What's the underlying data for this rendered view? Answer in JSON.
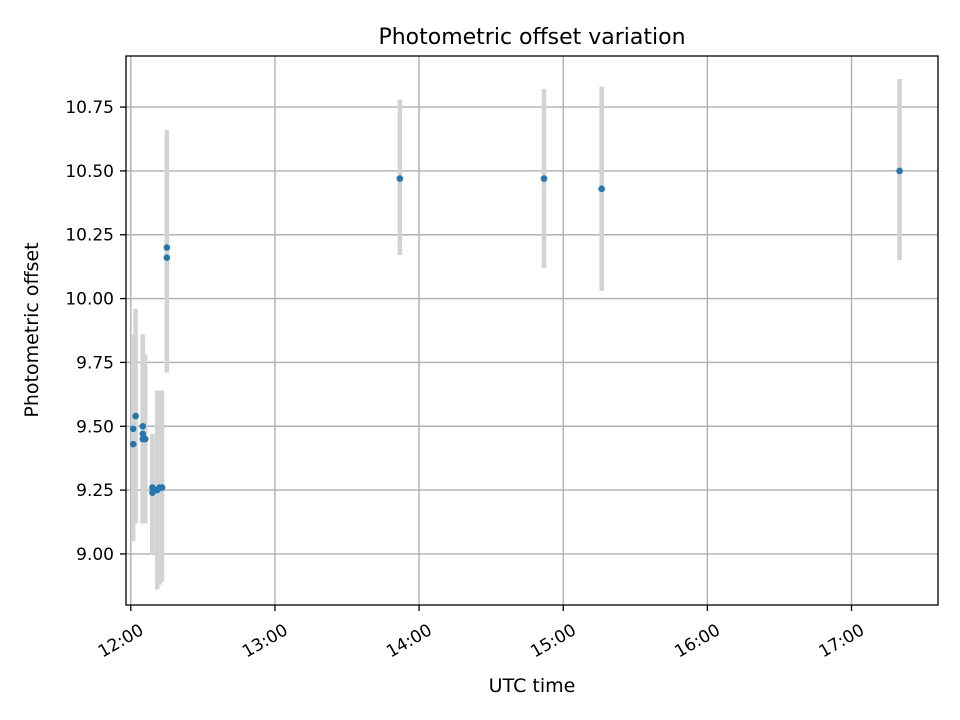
{
  "chart_data": {
    "type": "scatter",
    "title": "Photometric offset variation",
    "xlabel": "UTC time",
    "ylabel": "Photometric offset",
    "x_axis_kind": "time",
    "xlim": [
      "11:58",
      "17:36"
    ],
    "ylim": [
      8.8,
      10.95
    ],
    "x_ticks": [
      "12:00",
      "13:00",
      "14:00",
      "15:00",
      "16:00",
      "17:00"
    ],
    "y_ticks": [
      "9.00",
      "9.25",
      "9.50",
      "9.75",
      "10.00",
      "10.25",
      "10.50",
      "10.75"
    ],
    "grid": true,
    "marker_color": "#1f77b4",
    "errorbar_color": "#d3d3d3",
    "points": [
      {
        "x": "12:01",
        "y": 9.49,
        "yerr_low": 9.12,
        "yerr_high": 9.86
      },
      {
        "x": "12:01",
        "y": 9.43,
        "yerr_low": 9.05,
        "yerr_high": 9.8
      },
      {
        "x": "12:02",
        "y": 9.54,
        "yerr_low": 9.12,
        "yerr_high": 9.96
      },
      {
        "x": "12:05",
        "y": 9.5,
        "yerr_low": 9.12,
        "yerr_high": 9.86
      },
      {
        "x": "12:05",
        "y": 9.47,
        "yerr_low": 9.12,
        "yerr_high": 9.82
      },
      {
        "x": "12:05",
        "y": 9.45,
        "yerr_low": 9.12,
        "yerr_high": 9.79
      },
      {
        "x": "12:06",
        "y": 9.45,
        "yerr_low": 9.12,
        "yerr_high": 9.78
      },
      {
        "x": "12:09",
        "y": 9.26,
        "yerr_low": 9.0,
        "yerr_high": 9.47
      },
      {
        "x": "12:09",
        "y": 9.24,
        "yerr_low": 9.0,
        "yerr_high": 9.47
      },
      {
        "x": "12:11",
        "y": 9.25,
        "yerr_low": 8.86,
        "yerr_high": 9.64
      },
      {
        "x": "12:12",
        "y": 9.26,
        "yerr_low": 8.88,
        "yerr_high": 9.64
      },
      {
        "x": "12:13",
        "y": 9.26,
        "yerr_low": 8.89,
        "yerr_high": 9.64
      },
      {
        "x": "12:15",
        "y": 10.2,
        "yerr_low": 9.71,
        "yerr_high": 10.66
      },
      {
        "x": "12:15",
        "y": 10.16,
        "yerr_low": 9.71,
        "yerr_high": 10.61
      },
      {
        "x": "13:52",
        "y": 10.47,
        "yerr_low": 10.17,
        "yerr_high": 10.78
      },
      {
        "x": "14:52",
        "y": 10.47,
        "yerr_low": 10.12,
        "yerr_high": 10.82
      },
      {
        "x": "15:16",
        "y": 10.43,
        "yerr_low": 10.03,
        "yerr_high": 10.83
      },
      {
        "x": "17:20",
        "y": 10.5,
        "yerr_low": 10.15,
        "yerr_high": 10.86
      }
    ]
  }
}
